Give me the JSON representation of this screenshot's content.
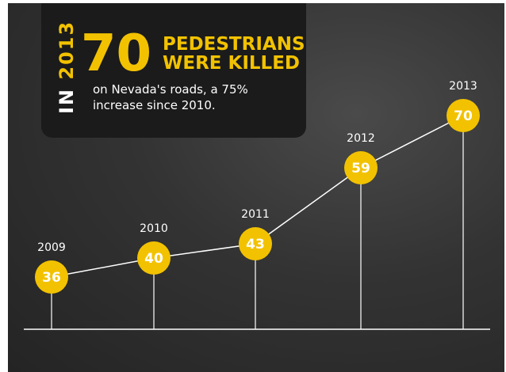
{
  "headline": {
    "prefix": "IN ",
    "year": "2013",
    "number": "70",
    "line1": "PEDESTRIANS",
    "line2": "WERE KILLED",
    "sub1": "on Nevada's roads, a 75%",
    "sub2": "increase since 2010."
  },
  "colors": {
    "accent": "#f2c200",
    "text": "#ffffff",
    "background": "#2e2e2e",
    "panel": "#1b1b1b"
  },
  "chart_data": {
    "type": "line",
    "title": "",
    "xlabel": "",
    "ylabel": "",
    "categories": [
      "2009",
      "2010",
      "2011",
      "2012",
      "2013"
    ],
    "values": [
      36,
      40,
      43,
      59,
      70
    ],
    "ylim": [
      0,
      80
    ],
    "grid": false,
    "legend": "none"
  }
}
